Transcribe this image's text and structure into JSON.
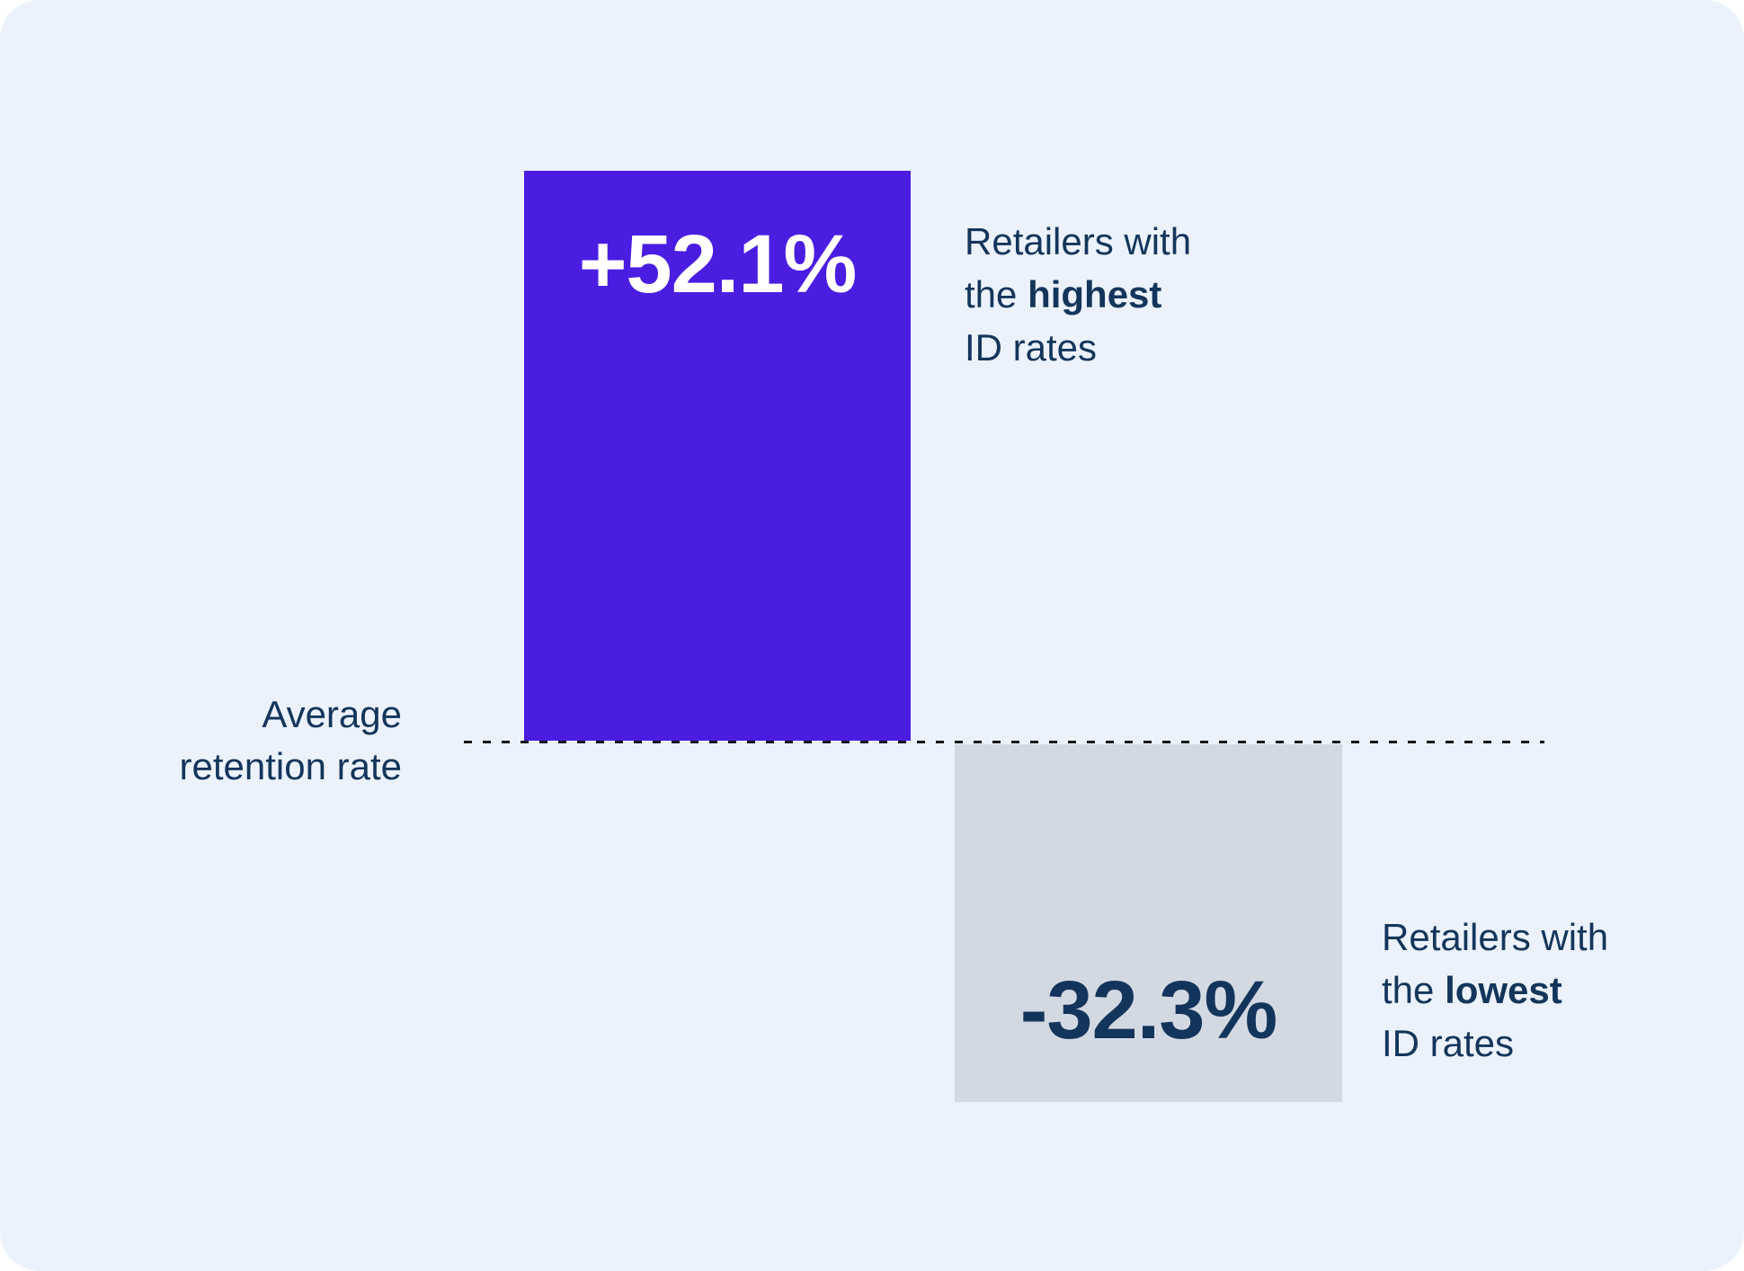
{
  "chart_data": {
    "type": "bar",
    "subtype": "diverging-vertical",
    "title": "",
    "baseline_label": "Average retention rate",
    "categories": [
      "Retailers with the highest ID rates",
      "Retailers with the lowest ID rates"
    ],
    "values": [
      52.1,
      -32.3
    ],
    "value_labels": [
      "+52.1%",
      "-32.3%"
    ],
    "unit": "% vs average retention rate",
    "baseline_value": 0,
    "grid": false,
    "legend": false,
    "bar_colors": [
      "#4B1DE1",
      "#D3D9E3"
    ],
    "baseline_line_style": "dashed"
  },
  "colors": {
    "card_background": "#EBF2FC",
    "positive_bar": "#4B1DE1",
    "negative_bar": "#D3D9E3",
    "navy_text": "#14355B",
    "value_on_positive_bar": "#FFFFFF",
    "baseline_dash": "#161616"
  },
  "ui": {
    "baseline": {
      "line1": "Average",
      "line2": "retention rate"
    },
    "positive": {
      "value": "+52.1%",
      "caption": {
        "line1": "Retailers with",
        "line2_normal": "the ",
        "line2_bold": "highest",
        "line3": "ID rates"
      }
    },
    "negative": {
      "value": "-32.3%",
      "caption": {
        "line1": "Retailers with",
        "line2_normal": "the ",
        "line2_bold": "lowest",
        "line3": "ID rates"
      }
    }
  }
}
